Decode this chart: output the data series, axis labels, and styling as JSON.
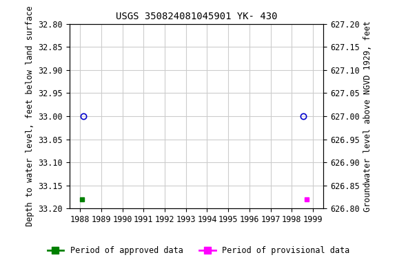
{
  "title": "USGS 350824081045901 YK- 430",
  "ylabel_left": "Depth to water level, feet below land surface",
  "ylabel_right": "Groundwater level above NGVD 1929, feet",
  "ylim_left_top": 32.8,
  "ylim_left_bottom": 33.2,
  "ylim_right_top": 627.2,
  "ylim_right_bottom": 626.8,
  "xlim": [
    1987.5,
    1999.5
  ],
  "xticks": [
    1988,
    1989,
    1990,
    1991,
    1992,
    1993,
    1994,
    1995,
    1996,
    1997,
    1998,
    1999
  ],
  "yticks_left": [
    32.8,
    32.85,
    32.9,
    32.95,
    33.0,
    33.05,
    33.1,
    33.15,
    33.2
  ],
  "yticks_right": [
    627.2,
    627.15,
    627.1,
    627.05,
    627.0,
    626.95,
    626.9,
    626.85,
    626.8
  ],
  "approved_x": [
    1988.1
  ],
  "approved_y": [
    33.18
  ],
  "provisional_x": [
    1998.7
  ],
  "provisional_y": [
    33.18
  ],
  "circle_approved_x": [
    1988.15
  ],
  "circle_approved_y": [
    33.0
  ],
  "circle_provisional_x": [
    1998.55
  ],
  "circle_provisional_y": [
    33.0
  ],
  "approved_color": "#008000",
  "provisional_color": "#ff00ff",
  "circle_color": "#0000cd",
  "bg_color": "#ffffff",
  "grid_color": "#cccccc",
  "title_fontsize": 10,
  "tick_fontsize": 8.5,
  "label_fontsize": 8.5,
  "legend_fontsize": 8.5
}
